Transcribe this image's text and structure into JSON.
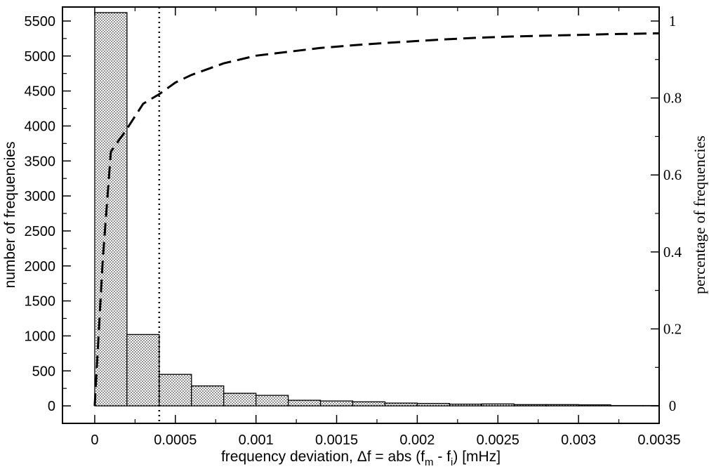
{
  "chart_data": {
    "type": "bar",
    "xlabel_parts": {
      "main": "frequency deviation, Δf = abs (f",
      "sub1": "m",
      "mid": " - f",
      "sub2": "i",
      "end": ") [mHz]"
    },
    "ylabel": "number of frequencies",
    "y2label": "percentage of frequencies",
    "xlim": [
      -0.0002,
      0.0035
    ],
    "ylim": [
      -250,
      5700
    ],
    "y2lim": [
      0,
      1
    ],
    "x_ticks": [
      0,
      0.0005,
      0.001,
      0.0015,
      0.002,
      0.0025,
      0.003,
      0.0035
    ],
    "x_tick_labels": [
      "0",
      "0.0005",
      "0.001",
      "0.0015",
      "0.002",
      "0.0025",
      "0.003",
      "0.0035"
    ],
    "y_ticks": [
      0,
      500,
      1000,
      1500,
      2000,
      2500,
      3000,
      3500,
      4000,
      4500,
      5000,
      5500
    ],
    "y_tick_labels": [
      "0",
      "500",
      "1000",
      "1500",
      "2000",
      "2500",
      "3000",
      "3500",
      "4000",
      "4500",
      "5000",
      "5500"
    ],
    "y2_ticks": [
      0,
      0.2,
      0.4,
      0.6,
      0.8,
      1
    ],
    "y2_tick_labels": [
      "0",
      "0.2",
      "0.4",
      "0.6",
      "0.8",
      "1"
    ],
    "bin_width": 0.0002,
    "bins": [
      {
        "x0": 0.0,
        "value": 5620
      },
      {
        "x0": 0.0002,
        "value": 1020
      },
      {
        "x0": 0.0004,
        "value": 450
      },
      {
        "x0": 0.0006,
        "value": 285
      },
      {
        "x0": 0.0008,
        "value": 180
      },
      {
        "x0": 0.001,
        "value": 150
      },
      {
        "x0": 0.0012,
        "value": 80
      },
      {
        "x0": 0.0014,
        "value": 70
      },
      {
        "x0": 0.0016,
        "value": 58
      },
      {
        "x0": 0.0018,
        "value": 40
      },
      {
        "x0": 0.002,
        "value": 35
      },
      {
        "x0": 0.0022,
        "value": 25
      },
      {
        "x0": 0.0024,
        "value": 28
      },
      {
        "x0": 0.0026,
        "value": 18
      },
      {
        "x0": 0.0028,
        "value": 18
      },
      {
        "x0": 0.003,
        "value": 15
      },
      {
        "x0": 0.0032,
        "value": 5
      },
      {
        "x0": 0.0034,
        "value": 5
      }
    ],
    "cumulative_series": {
      "style": "dashed",
      "axis": "right",
      "x": [
        0,
        5e-05,
        0.0001,
        0.0002,
        0.0003,
        0.0004,
        0.0005,
        0.0006,
        0.0008,
        0.001,
        0.0012,
        0.0014,
        0.0016,
        0.0018,
        0.002,
        0.0022,
        0.0024,
        0.0026,
        0.0028,
        0.003,
        0.0032,
        0.0035
      ],
      "y": [
        0,
        0.38,
        0.66,
        0.72,
        0.785,
        0.81,
        0.84,
        0.86,
        0.89,
        0.91,
        0.92,
        0.93,
        0.937,
        0.943,
        0.948,
        0.953,
        0.957,
        0.96,
        0.962,
        0.964,
        0.966,
        0.968
      ]
    },
    "reference_line": {
      "x": 0.0004,
      "style": "dotted"
    }
  }
}
